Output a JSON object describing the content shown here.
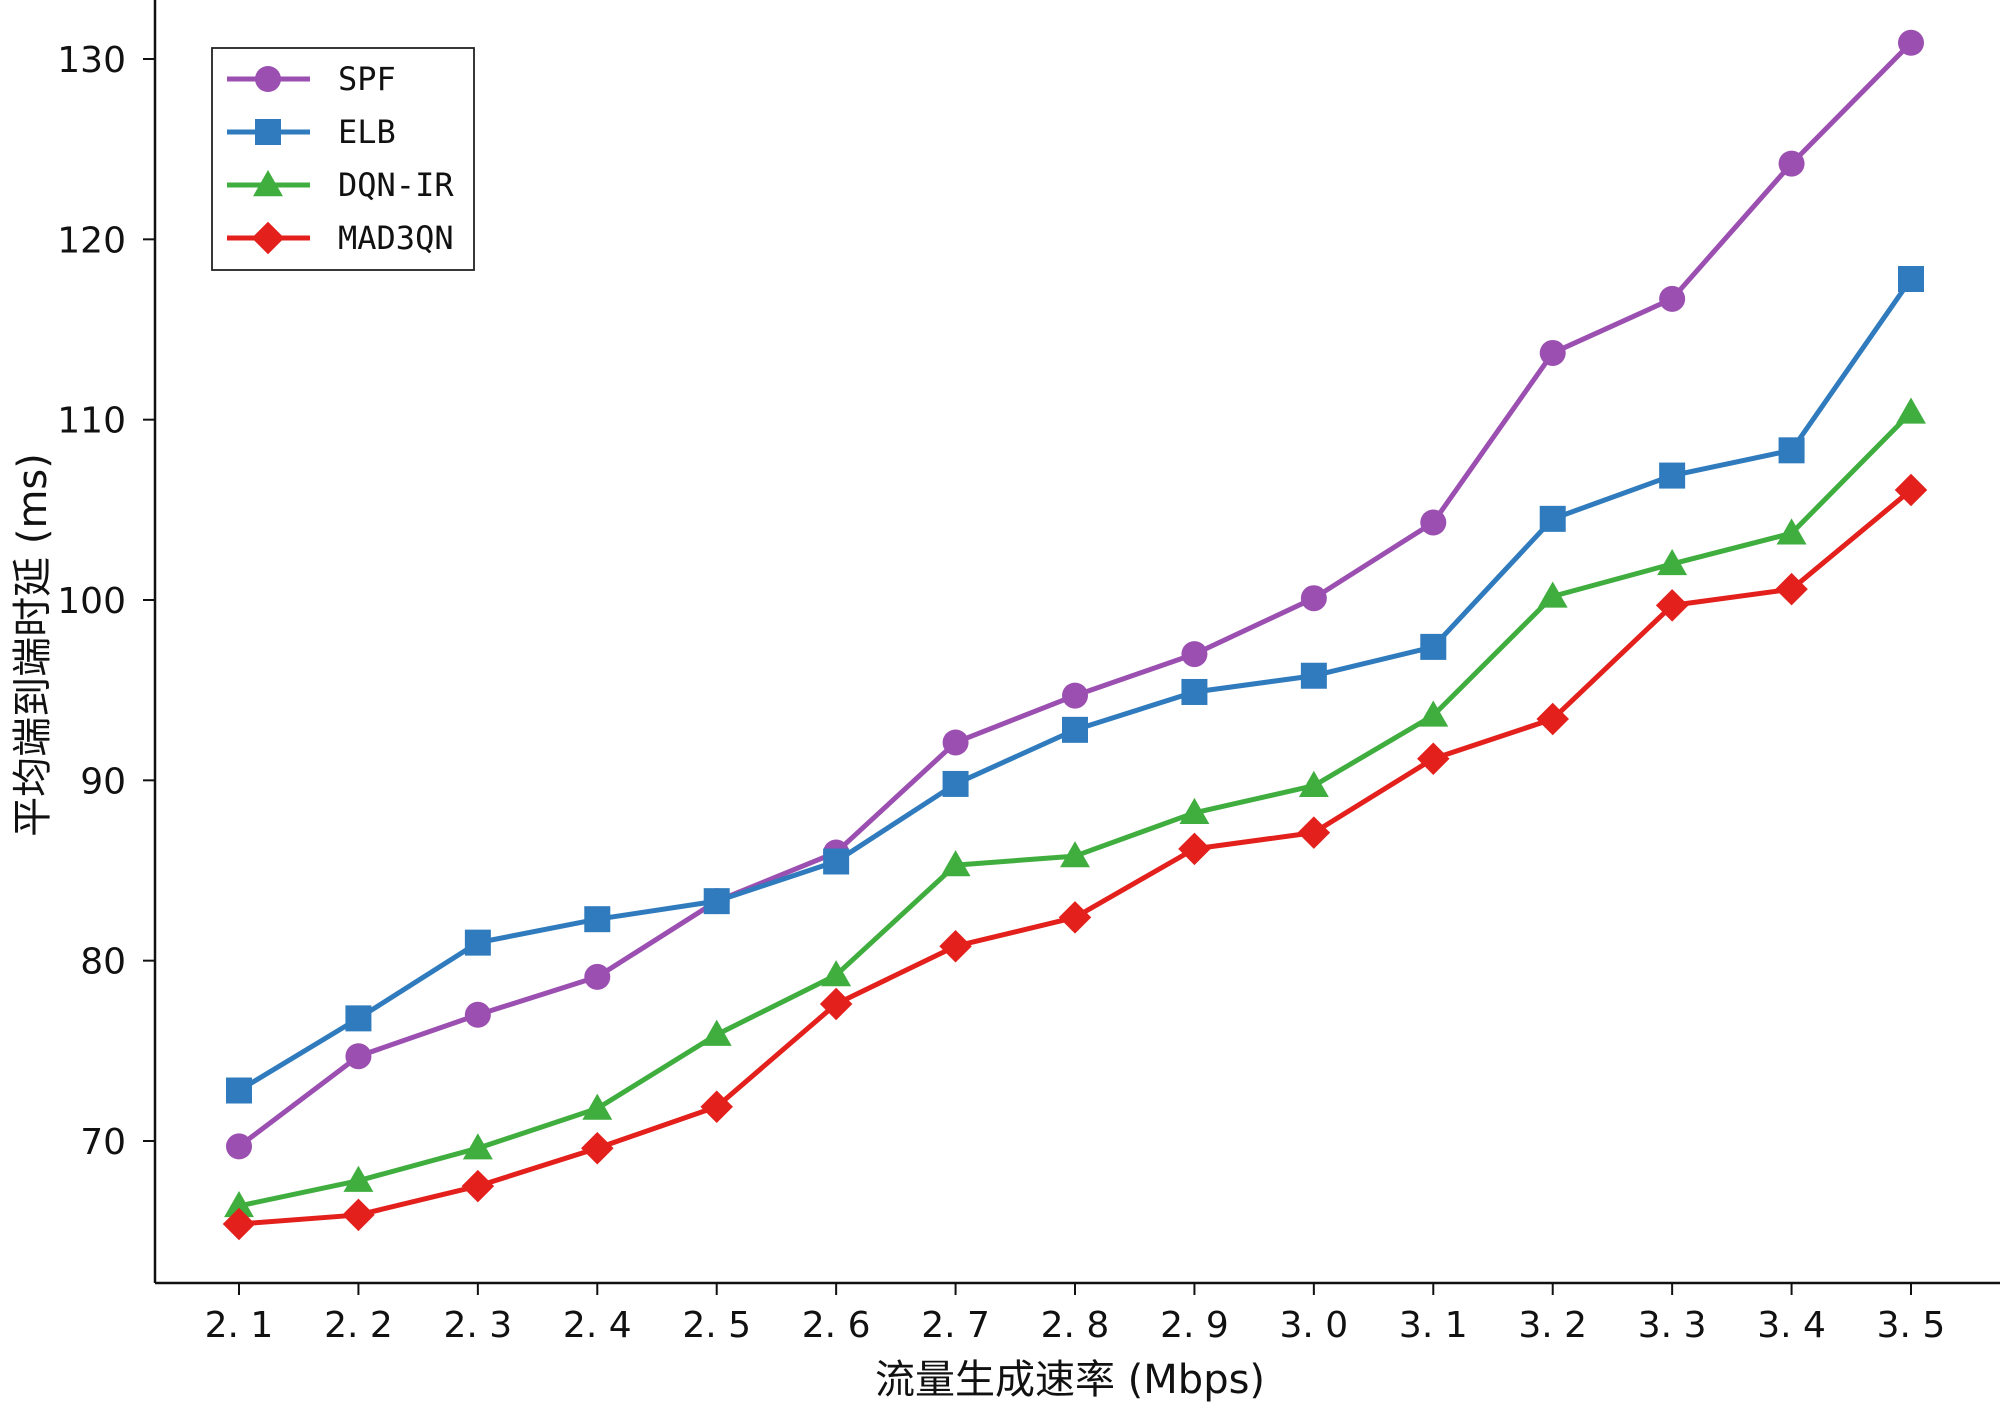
{
  "chart_data": {
    "type": "line",
    "xlabel": "流量生成速率 (Mbps)",
    "ylabel": "平均端到端时延 (ms)",
    "x": [
      "2.1",
      "2.2",
      "2.3",
      "2.4",
      "2.5",
      "2.6",
      "2.7",
      "2.8",
      "2.9",
      "3.0",
      "3.1",
      "3.2",
      "3.3",
      "3.4",
      "3.5"
    ],
    "x_tick_labels": [
      "2. 1",
      "2. 2",
      "2. 3",
      "2. 4",
      "2. 5",
      "2. 6",
      "2. 7",
      "2. 8",
      "2. 9",
      "3. 0",
      "3. 1",
      "3. 2",
      "3. 3",
      "3. 4",
      "3. 5"
    ],
    "y_ticks": [
      70,
      80,
      90,
      100,
      110,
      120,
      130
    ],
    "ylim": [
      62,
      135
    ],
    "grid": false,
    "legend_position": "top-left",
    "series": [
      {
        "name": "SPF",
        "color": "#9b4fb0",
        "marker": "circle",
        "values": [
          69.7,
          74.7,
          77.0,
          79.1,
          83.3,
          86.0,
          92.1,
          94.7,
          97.0,
          100.1,
          104.3,
          113.7,
          116.7,
          124.2,
          130.9
        ]
      },
      {
        "name": "ELB",
        "color": "#2f7bbd",
        "marker": "square",
        "values": [
          72.8,
          76.8,
          81.0,
          82.3,
          83.3,
          85.5,
          89.8,
          92.8,
          94.9,
          95.8,
          97.4,
          104.5,
          106.9,
          108.3,
          117.8
        ]
      },
      {
        "name": "DQN-IR",
        "color": "#3fae3f",
        "marker": "triangle",
        "values": [
          66.4,
          67.8,
          69.6,
          71.8,
          75.9,
          79.2,
          85.3,
          85.8,
          88.2,
          89.7,
          93.6,
          100.2,
          102.0,
          103.7,
          110.4
        ]
      },
      {
        "name": "MAD3QN",
        "color": "#e3201c",
        "marker": "diamond",
        "values": [
          65.4,
          65.9,
          67.5,
          69.6,
          71.9,
          77.6,
          80.8,
          82.4,
          86.2,
          87.1,
          91.2,
          93.4,
          99.7,
          100.6,
          106.1
        ]
      }
    ]
  }
}
